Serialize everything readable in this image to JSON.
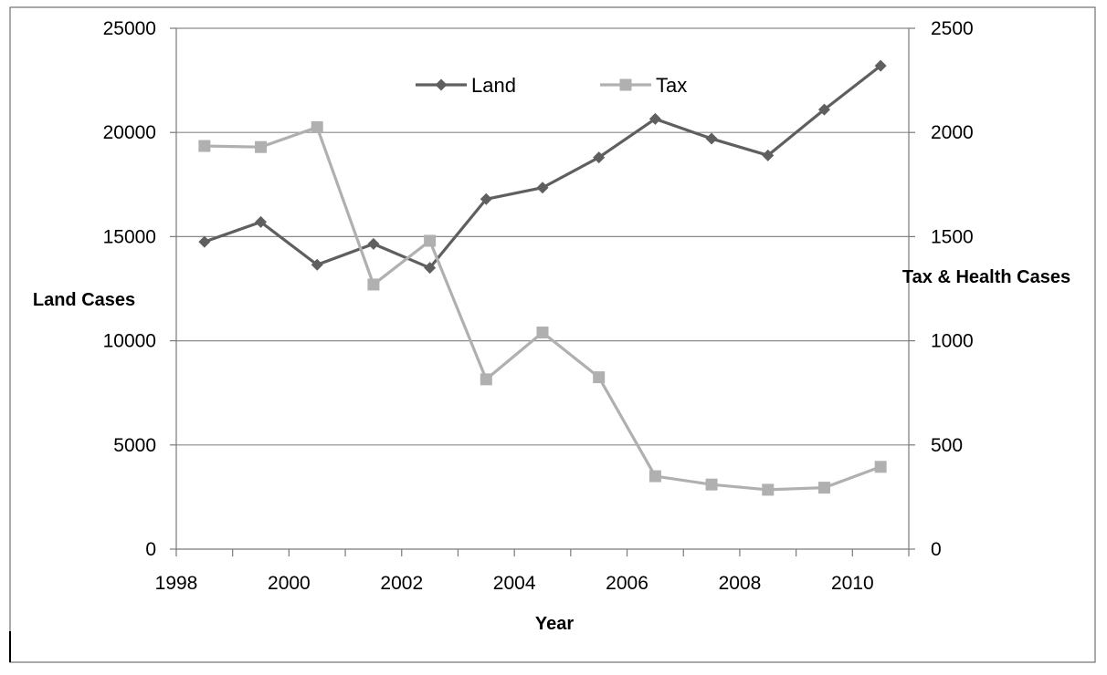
{
  "chart_data": {
    "type": "line",
    "title": "",
    "xlabel": "Year",
    "ylabel": "Land Cases",
    "y2label": "Tax & Health Cases",
    "x": [
      1998,
      1999,
      2000,
      2001,
      2002,
      2003,
      2004,
      2005,
      2006,
      2007,
      2008,
      2009,
      2010
    ],
    "x_tick_labels": [
      "1998",
      "2000",
      "2002",
      "2004",
      "2006",
      "2008",
      "2010"
    ],
    "ylim": [
      0,
      25000
    ],
    "y_ticks": [
      0,
      5000,
      10000,
      15000,
      20000,
      25000
    ],
    "y2lim": [
      0,
      2500
    ],
    "y2_ticks": [
      0,
      500,
      1000,
      1500,
      2000,
      2500
    ],
    "grid": "horizontal",
    "legend_position": "top-center",
    "series": [
      {
        "name": "Land",
        "axis": "left",
        "marker": "diamond",
        "color": "#5f5f5f",
        "values": [
          14750,
          15700,
          13650,
          14650,
          13500,
          16800,
          17350,
          18800,
          20650,
          19700,
          18900,
          21100,
          23200
        ]
      },
      {
        "name": "Tax",
        "axis": "right",
        "marker": "square",
        "color": "#b0b0b0",
        "values": [
          1935,
          1930,
          2025,
          1270,
          1480,
          815,
          1040,
          825,
          350,
          310,
          285,
          295,
          395
        ]
      }
    ]
  }
}
